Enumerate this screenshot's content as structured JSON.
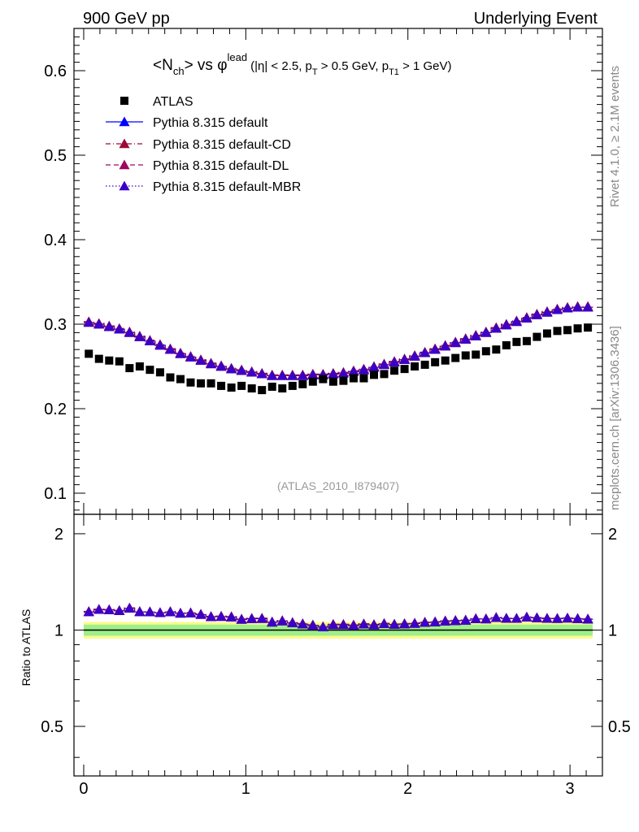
{
  "header": {
    "left": "900 GeV pp",
    "right": "Underlying Event",
    "title_main_pre": "<N",
    "title_main_sub": "ch",
    "title_main_post": "> vs φ",
    "title_main_sup": "lead",
    "title_cuts_a": "(|η| < 2.5, p",
    "title_cuts_sub1": "T",
    "title_cuts_b": " > 0.5 GeV, p",
    "title_cuts_sub2": "T1",
    "title_cuts_c": " > 1 GeV)"
  },
  "side": {
    "rivet": "Rivet 4.1.0, ≥ 2.1M events",
    "mcplots": "mcplots.cern.ch [arXiv:1306.3436]"
  },
  "watermark": "(ATLAS_2010_I879407)",
  "colors": {
    "data": "#000000",
    "default": "#0000ff",
    "cd": "#9b0a35",
    "dl": "#a0075f",
    "mbr": "#3a00c8",
    "band_green": "#9eef8a",
    "band_yellow": "#fbfb8c",
    "watermark": "#999999",
    "side_text": "#888888"
  },
  "chart_data": {
    "type": "scatter",
    "xlabel": "",
    "ylabel": "",
    "ratio_ylabel": "Ratio to ATLAS",
    "xlim": [
      -0.06,
      3.2
    ],
    "ylim": [
      0.075,
      0.65
    ],
    "ratio_ylim": [
      0.35,
      2.3
    ],
    "x_ticks": [
      0,
      1,
      2,
      3
    ],
    "y_ticks": [
      0.1,
      0.2,
      0.3,
      0.4,
      0.5,
      0.6
    ],
    "y_tick_labels": [
      "0.1",
      "0.2",
      "0.3",
      "0.4",
      "0.5",
      "0.6"
    ],
    "ratio_ticks": [
      0.5,
      1,
      2
    ],
    "ratio_tick_labels": [
      "0.5",
      "1",
      "2"
    ],
    "x": [
      0.0314,
      0.0942,
      0.1571,
      0.2199,
      0.2827,
      0.3456,
      0.4084,
      0.4712,
      0.5341,
      0.5969,
      0.6597,
      0.7226,
      0.7854,
      0.8482,
      0.9111,
      0.9739,
      1.0367,
      1.0996,
      1.1624,
      1.2252,
      1.2881,
      1.3509,
      1.4137,
      1.4765,
      1.5394,
      1.6022,
      1.665,
      1.7279,
      1.7907,
      1.8535,
      1.9164,
      1.9792,
      2.042,
      2.1049,
      2.1677,
      2.2305,
      2.2934,
      2.3562,
      2.419,
      2.4819,
      2.5447,
      2.6075,
      2.6704,
      2.7332,
      2.796,
      2.8588,
      2.9217,
      2.9845,
      3.0473,
      3.1102
    ],
    "series": [
      {
        "name": "ATLAS",
        "marker": "square",
        "values": [
          0.265,
          0.259,
          0.257,
          0.256,
          0.248,
          0.25,
          0.246,
          0.243,
          0.237,
          0.235,
          0.231,
          0.23,
          0.23,
          0.227,
          0.225,
          0.227,
          0.224,
          0.222,
          0.226,
          0.224,
          0.227,
          0.229,
          0.232,
          0.235,
          0.232,
          0.233,
          0.236,
          0.236,
          0.24,
          0.241,
          0.245,
          0.247,
          0.25,
          0.252,
          0.255,
          0.257,
          0.26,
          0.263,
          0.264,
          0.268,
          0.27,
          0.275,
          0.279,
          0.28,
          0.285,
          0.289,
          0.292,
          0.293,
          0.295,
          0.296
        ]
      },
      {
        "name": "Pythia 8.315 default",
        "style": "solid",
        "values": [
          0.302,
          0.3,
          0.297,
          0.294,
          0.29,
          0.285,
          0.28,
          0.275,
          0.27,
          0.265,
          0.261,
          0.257,
          0.253,
          0.25,
          0.247,
          0.245,
          0.243,
          0.241,
          0.239,
          0.239,
          0.239,
          0.239,
          0.24,
          0.24,
          0.241,
          0.242,
          0.244,
          0.246,
          0.249,
          0.252,
          0.255,
          0.258,
          0.262,
          0.266,
          0.27,
          0.274,
          0.278,
          0.282,
          0.286,
          0.29,
          0.295,
          0.299,
          0.303,
          0.307,
          0.311,
          0.314,
          0.317,
          0.319,
          0.32,
          0.32
        ]
      },
      {
        "name": "Pythia 8.315 default-CD",
        "style": "dashdot",
        "values": [
          0.303,
          0.301,
          0.298,
          0.295,
          0.291,
          0.286,
          0.281,
          0.276,
          0.271,
          0.266,
          0.262,
          0.258,
          0.254,
          0.251,
          0.248,
          0.246,
          0.244,
          0.242,
          0.24,
          0.24,
          0.24,
          0.24,
          0.241,
          0.241,
          0.242,
          0.243,
          0.245,
          0.247,
          0.25,
          0.253,
          0.256,
          0.259,
          0.263,
          0.267,
          0.271,
          0.275,
          0.279,
          0.283,
          0.287,
          0.291,
          0.296,
          0.3,
          0.304,
          0.308,
          0.312,
          0.315,
          0.318,
          0.32,
          0.321,
          0.321
        ]
      },
      {
        "name": "Pythia 8.315 default-DL",
        "style": "dashed",
        "values": [
          0.302,
          0.3,
          0.297,
          0.294,
          0.29,
          0.285,
          0.28,
          0.275,
          0.27,
          0.265,
          0.261,
          0.257,
          0.253,
          0.25,
          0.247,
          0.245,
          0.243,
          0.241,
          0.239,
          0.239,
          0.239,
          0.239,
          0.24,
          0.24,
          0.241,
          0.242,
          0.244,
          0.246,
          0.249,
          0.252,
          0.255,
          0.258,
          0.262,
          0.266,
          0.27,
          0.274,
          0.278,
          0.282,
          0.286,
          0.29,
          0.295,
          0.299,
          0.303,
          0.307,
          0.311,
          0.314,
          0.317,
          0.319,
          0.32,
          0.32
        ]
      },
      {
        "name": "Pythia 8.315 default-MBR",
        "style": "dotted",
        "values": [
          0.302,
          0.3,
          0.297,
          0.294,
          0.29,
          0.285,
          0.28,
          0.275,
          0.27,
          0.265,
          0.261,
          0.257,
          0.253,
          0.25,
          0.247,
          0.245,
          0.243,
          0.241,
          0.239,
          0.239,
          0.239,
          0.239,
          0.24,
          0.24,
          0.241,
          0.242,
          0.244,
          0.246,
          0.249,
          0.252,
          0.255,
          0.258,
          0.262,
          0.266,
          0.27,
          0.274,
          0.278,
          0.282,
          0.286,
          0.29,
          0.295,
          0.299,
          0.303,
          0.307,
          0.311,
          0.314,
          0.317,
          0.319,
          0.32,
          0.32
        ]
      }
    ],
    "ratio_band_green": [
      0.96,
      1.04
    ],
    "ratio_band_yellow": [
      0.94,
      1.06
    ]
  }
}
